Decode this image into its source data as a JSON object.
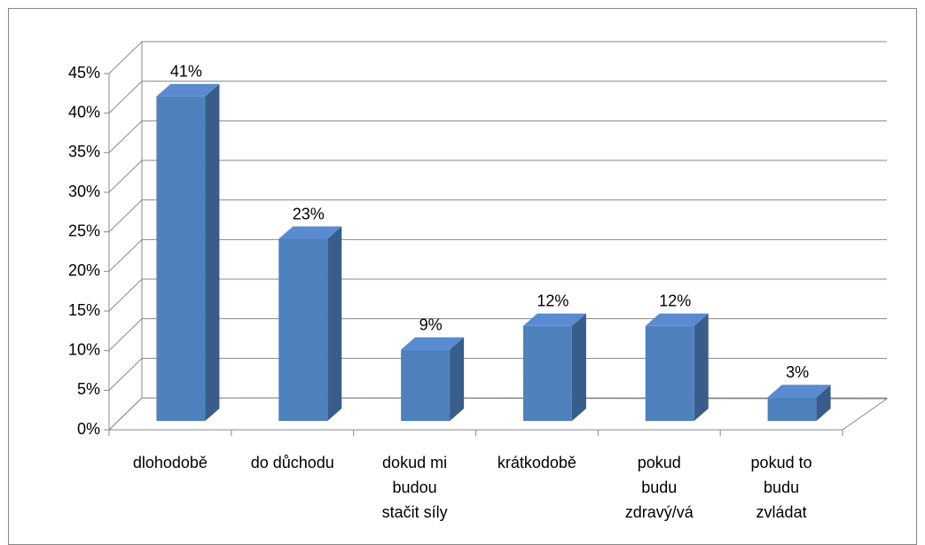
{
  "chart_data": {
    "type": "bar3d",
    "categories": [
      "dlohodobě",
      "do důchodu",
      "dokud mi budou stačit síly",
      "krátkodobě",
      "pokud budu zdravý/vá",
      "pokud to budu zvládat"
    ],
    "values": [
      41,
      23,
      9,
      12,
      12,
      3
    ],
    "value_labels": [
      "41%",
      "23%",
      "9%",
      "12%",
      "12%",
      "3%"
    ],
    "color": "#4f81bd",
    "ylim": [
      0,
      45
    ],
    "yticks": [
      {
        "value": 0,
        "label": "0%"
      },
      {
        "value": 5,
        "label": "5%"
      },
      {
        "value": 10,
        "label": "10%"
      },
      {
        "value": 15,
        "label": "15%"
      },
      {
        "value": 20,
        "label": "20%"
      },
      {
        "value": 25,
        "label": "25%"
      },
      {
        "value": 30,
        "label": "30%"
      },
      {
        "value": 35,
        "label": "35%"
      },
      {
        "value": 40,
        "label": "40%"
      },
      {
        "value": 45,
        "label": "45%"
      }
    ],
    "grid": true
  }
}
